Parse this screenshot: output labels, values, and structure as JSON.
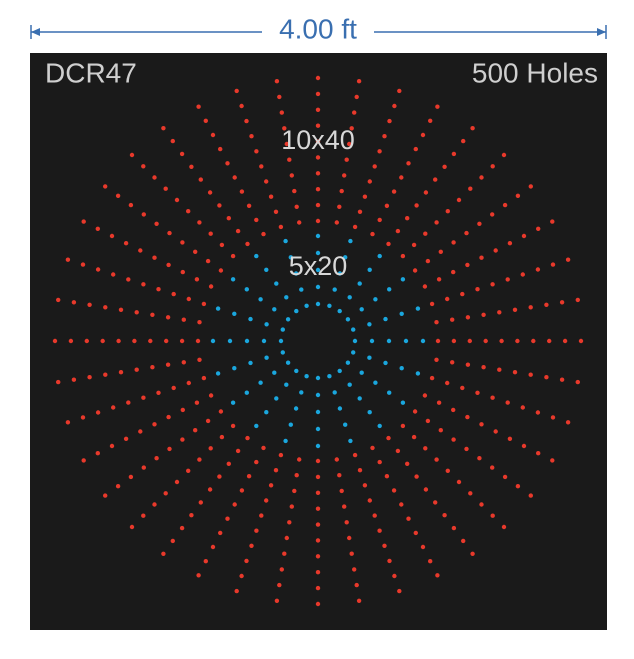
{
  "dimension": "4.00 ft",
  "panel": {
    "name": "DCR47",
    "hole_count": "500 Holes"
  },
  "patterns": [
    {
      "label": "10x40",
      "color": "#e8392b"
    },
    {
      "label": "5x20",
      "color": "#1aa7de"
    }
  ]
}
